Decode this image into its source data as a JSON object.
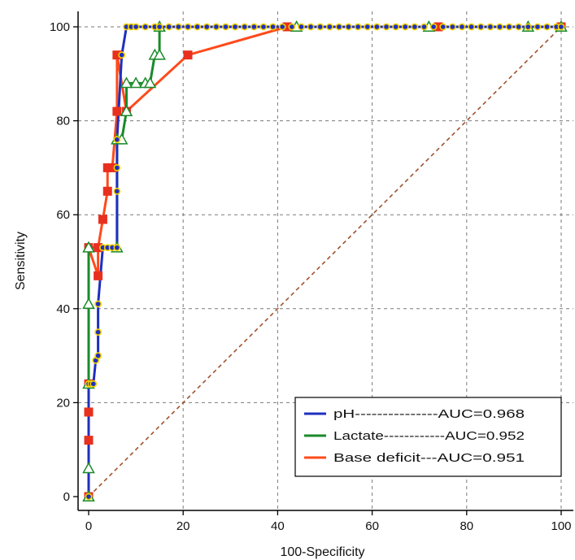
{
  "chart_data": {
    "type": "line",
    "title": "",
    "xlabel": "100-Specificity",
    "ylabel": "Sensitivity",
    "xlim": [
      0,
      100
    ],
    "ylim": [
      0,
      100
    ],
    "xticks": [
      "0",
      "20",
      "40",
      "60",
      "80",
      "100"
    ],
    "yticks": [
      "0",
      "20",
      "40",
      "60",
      "80",
      "100"
    ],
    "grid": true,
    "legend": {
      "position": "bottom-right",
      "entries": [
        {
          "text": "pH---------------AUC=0.968",
          "color": "#1f2fbf"
        },
        {
          "text": "Lactate------------AUC=0.952",
          "color": "#1a8a2a"
        },
        {
          "text": "Base deficit---AUC=0.951",
          "color": "#ff4a1a"
        }
      ]
    },
    "reference_line": {
      "x": [
        0,
        100
      ],
      "y": [
        0,
        100
      ],
      "color": "#a0522d"
    },
    "series": [
      {
        "name": "pH",
        "color": "#1f2fbf",
        "marker": "circle",
        "marker_fill": "#1f2fbf",
        "marker_edge": "#f2d200",
        "x": [
          0,
          0,
          0.5,
          1,
          1.5,
          2,
          2,
          2,
          3,
          4,
          5,
          6,
          6,
          6,
          6,
          7,
          8,
          9,
          10,
          12,
          14,
          15,
          17,
          19,
          21,
          23,
          25,
          27,
          29,
          31,
          33,
          35,
          37,
          39,
          41,
          43,
          45,
          47,
          49,
          51,
          53,
          55,
          57,
          59,
          61,
          63,
          65,
          67,
          69,
          71,
          73,
          75,
          77,
          79,
          81,
          83,
          85,
          87,
          89,
          91,
          93,
          95,
          97,
          99,
          100
        ],
        "y": [
          0,
          24,
          24,
          24,
          29,
          30,
          35,
          41,
          53,
          53,
          53,
          53,
          65,
          70,
          76,
          94,
          100,
          100,
          100,
          100,
          100,
          100,
          100,
          100,
          100,
          100,
          100,
          100,
          100,
          100,
          100,
          100,
          100,
          100,
          100,
          100,
          100,
          100,
          100,
          100,
          100,
          100,
          100,
          100,
          100,
          100,
          100,
          100,
          100,
          100,
          100,
          100,
          100,
          100,
          100,
          100,
          100,
          100,
          100,
          100,
          100,
          100,
          100,
          100,
          100
        ]
      },
      {
        "name": "Lactate",
        "color": "#1a8a2a",
        "marker": "triangle",
        "marker_fill": "#ffffff",
        "marker_edge": "#1a8a2a",
        "x": [
          0,
          0,
          0,
          0,
          0,
          6,
          6,
          7,
          8,
          8,
          10,
          12,
          13,
          14,
          15,
          15,
          44,
          72,
          93,
          100
        ],
        "y": [
          0,
          6,
          24,
          41,
          53,
          53,
          76,
          76,
          82,
          88,
          88,
          88,
          88,
          94,
          94,
          100,
          100,
          100,
          100,
          100
        ]
      },
      {
        "name": "Base deficit",
        "color": "#ff4a1a",
        "marker": "square",
        "marker_fill": "#e8301e",
        "marker_edge": "#e8301e",
        "x": [
          0,
          0,
          0,
          0,
          0,
          2,
          2,
          3,
          4,
          4,
          5,
          6,
          6,
          8,
          21,
          42,
          74,
          100
        ],
        "y": [
          0,
          12,
          18,
          24,
          53,
          47,
          53,
          59,
          65,
          70,
          70,
          82,
          94,
          82,
          94,
          100,
          100,
          100
        ]
      }
    ]
  }
}
